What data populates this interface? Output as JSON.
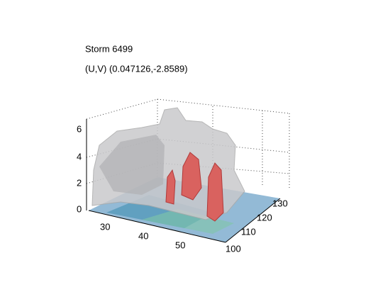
{
  "title": "Storm 6499",
  "subtitle": "(U,V) (0.047126,-2.8589)",
  "axes": {
    "z_ticks": [
      "0",
      "2",
      "4",
      "6"
    ],
    "x_ticks": [
      "30",
      "40",
      "50"
    ],
    "y_ticks": [
      "100",
      "110",
      "120",
      "130"
    ]
  }
}
